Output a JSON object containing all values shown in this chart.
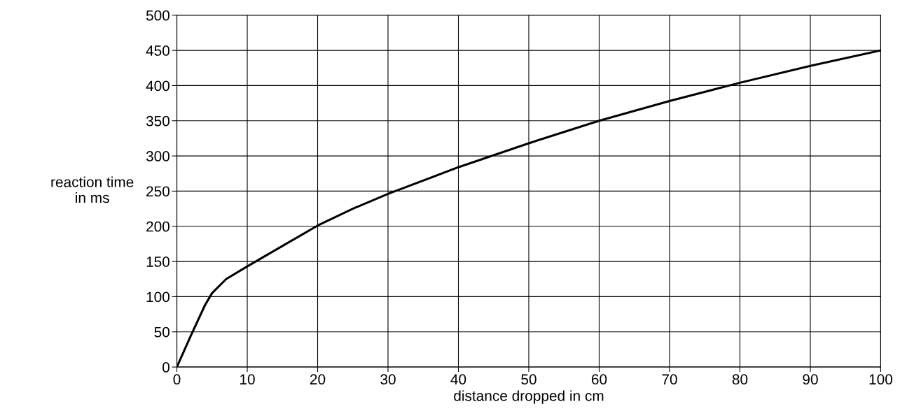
{
  "chart_data": {
    "type": "line",
    "xlabel": "distance dropped in cm",
    "ylabel": "reaction time\nin ms",
    "x": [
      0,
      2,
      4,
      5,
      7,
      10,
      15,
      20,
      25,
      30,
      40,
      50,
      60,
      70,
      80,
      90,
      100
    ],
    "series": [
      {
        "color": "#000000",
        "values": [
          0,
          45,
          88,
          105,
          125,
          143,
          172,
          201,
          225,
          246,
          284,
          318,
          350,
          378,
          404,
          428,
          450
        ]
      }
    ],
    "xlim": [
      0,
      100
    ],
    "ylim": [
      0,
      500
    ],
    "xticks": [
      0,
      10,
      20,
      30,
      40,
      50,
      60,
      70,
      80,
      90,
      100
    ],
    "yticks": [
      0,
      50,
      100,
      150,
      200,
      250,
      300,
      350,
      400,
      450,
      500
    ],
    "grid": true,
    "marker": "none",
    "line_style": "solid"
  }
}
